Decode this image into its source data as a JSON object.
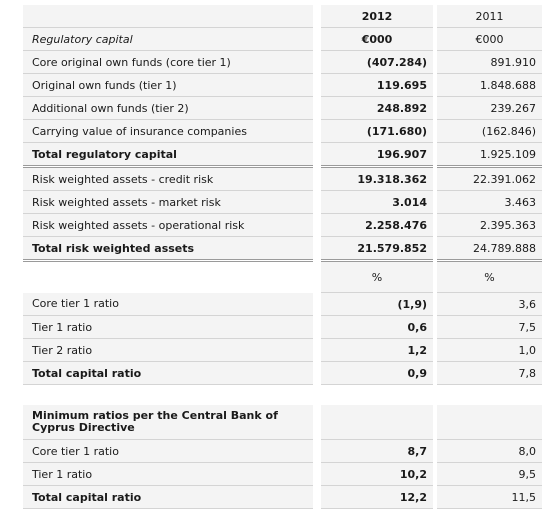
{
  "header": {
    "col_2012": "2012",
    "col_2011": "2011"
  },
  "section_regcap": {
    "title": "Regulatory capital",
    "unit_2012": "€000",
    "unit_2011": "€000",
    "rows": [
      {
        "label": "Core original own funds (core tier 1)",
        "v2012": "(407.284)",
        "v2011": "891.910"
      },
      {
        "label": "Original own funds (tier 1)",
        "v2012": "119.695",
        "v2011": "1.848.688"
      },
      {
        "label": "Additional own funds (tier 2)",
        "v2012": "248.892",
        "v2011": "239.267"
      },
      {
        "label": "Carrying value of insurance companies",
        "v2012": "(171.680)",
        "v2011": "(162.846)"
      }
    ],
    "total": {
      "label": "Total regulatory capital",
      "v2012": "196.907",
      "v2011": "1.925.109"
    }
  },
  "section_rwa": {
    "rows": [
      {
        "label": "Risk weighted assets - credit risk",
        "v2012": "19.318.362",
        "v2011": "22.391.062"
      },
      {
        "label": "Risk weighted assets - market risk",
        "v2012": "3.014",
        "v2011": "3.463"
      },
      {
        "label": "Risk weighted assets - operational risk",
        "v2012": "2.258.476",
        "v2011": "2.395.363"
      }
    ],
    "total": {
      "label": "Total risk weighted assets",
      "v2012": "21.579.852",
      "v2011": "24.789.888"
    }
  },
  "section_ratios": {
    "unit_2012": "%",
    "unit_2011": "%",
    "rows": [
      {
        "label": "Core tier 1 ratio",
        "v2012": "(1,9)",
        "v2011": "3,6"
      },
      {
        "label": "Tier 1 ratio",
        "v2012": "0,6",
        "v2011": "7,5"
      },
      {
        "label": "Tier 2 ratio",
        "v2012": "1,2",
        "v2011": "1,0"
      }
    ],
    "total": {
      "label": "Total capital ratio",
      "v2012": "0,9",
      "v2011": "7,8"
    }
  },
  "section_min": {
    "title": "Minimum ratios per the Central Bank of Cyprus Directive",
    "rows": [
      {
        "label": "Core tier 1 ratio",
        "v2012": "8,7",
        "v2011": "8,0"
      },
      {
        "label": "Tier 1 ratio",
        "v2012": "10,2",
        "v2011": "9,5"
      }
    ],
    "total": {
      "label": "Total capital ratio",
      "v2012": "12,2",
      "v2011": "11,5"
    }
  }
}
